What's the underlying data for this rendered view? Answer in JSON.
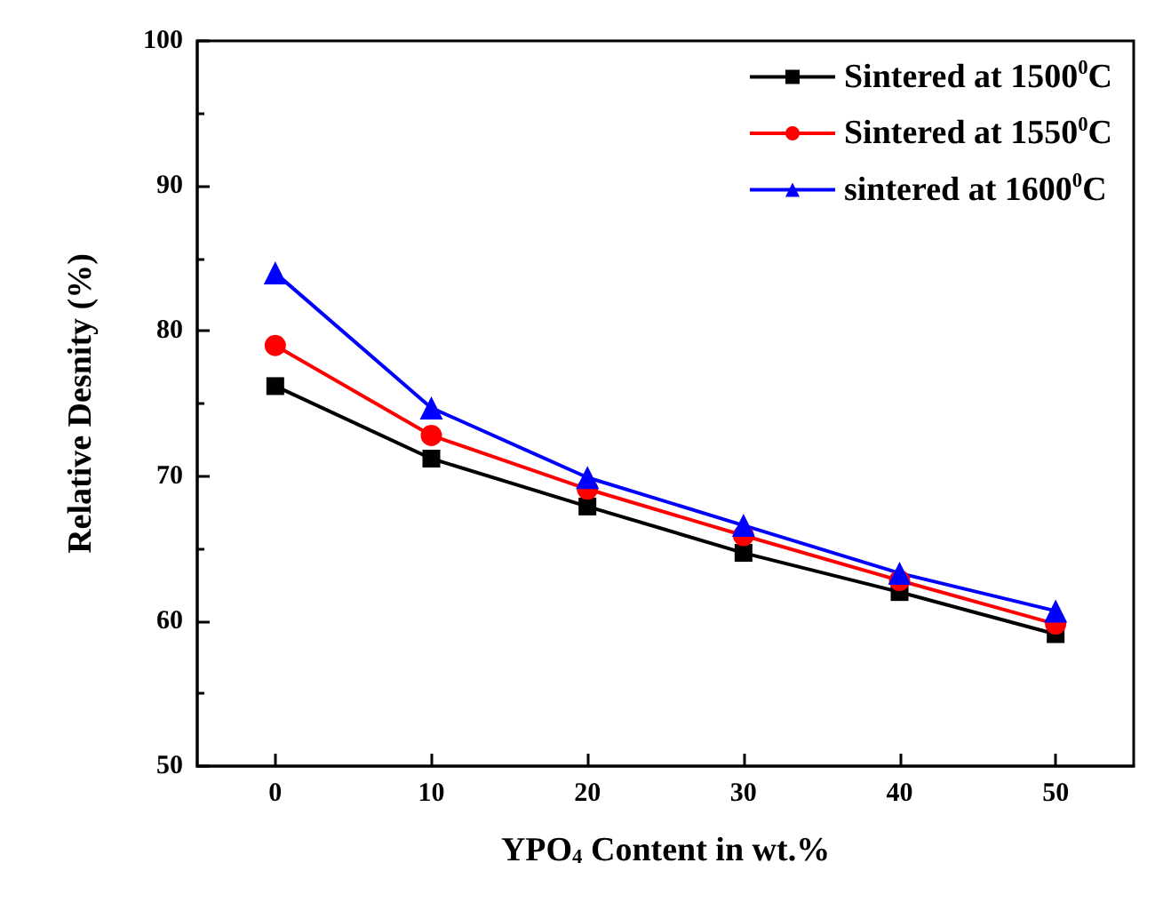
{
  "chart_data": {
    "type": "line",
    "xlabel": "YPO$_{4}$ Content in wt.%",
    "ylabel": "Relative Desnity (%)",
    "x": [
      0,
      10,
      20,
      30,
      40,
      50
    ],
    "series": [
      {
        "name": "Sintered at 1500$^{0}$C",
        "color": "#000000",
        "marker": "square",
        "values": [
          76.2,
          71.2,
          67.9,
          64.7,
          62.0,
          59.1
        ]
      },
      {
        "name": "Sintered at 1550$^{0}$C",
        "color": "#ff0000",
        "marker": "circle",
        "values": [
          79.0,
          72.8,
          69.1,
          65.9,
          62.8,
          59.8
        ]
      },
      {
        "name": "sintered at 1600$^{0}$C",
        "color": "#0000ff",
        "marker": "triangle",
        "values": [
          84.0,
          74.7,
          69.9,
          66.6,
          63.3,
          60.7
        ]
      }
    ],
    "xlim": [
      -5,
      55
    ],
    "xticks": [
      0,
      10,
      20,
      30,
      40,
      50
    ],
    "ylim": [
      50,
      100
    ],
    "yticks": [
      50,
      60,
      70,
      80,
      90,
      100
    ],
    "grid": false,
    "legend": "top right",
    "line_style": "solid"
  }
}
